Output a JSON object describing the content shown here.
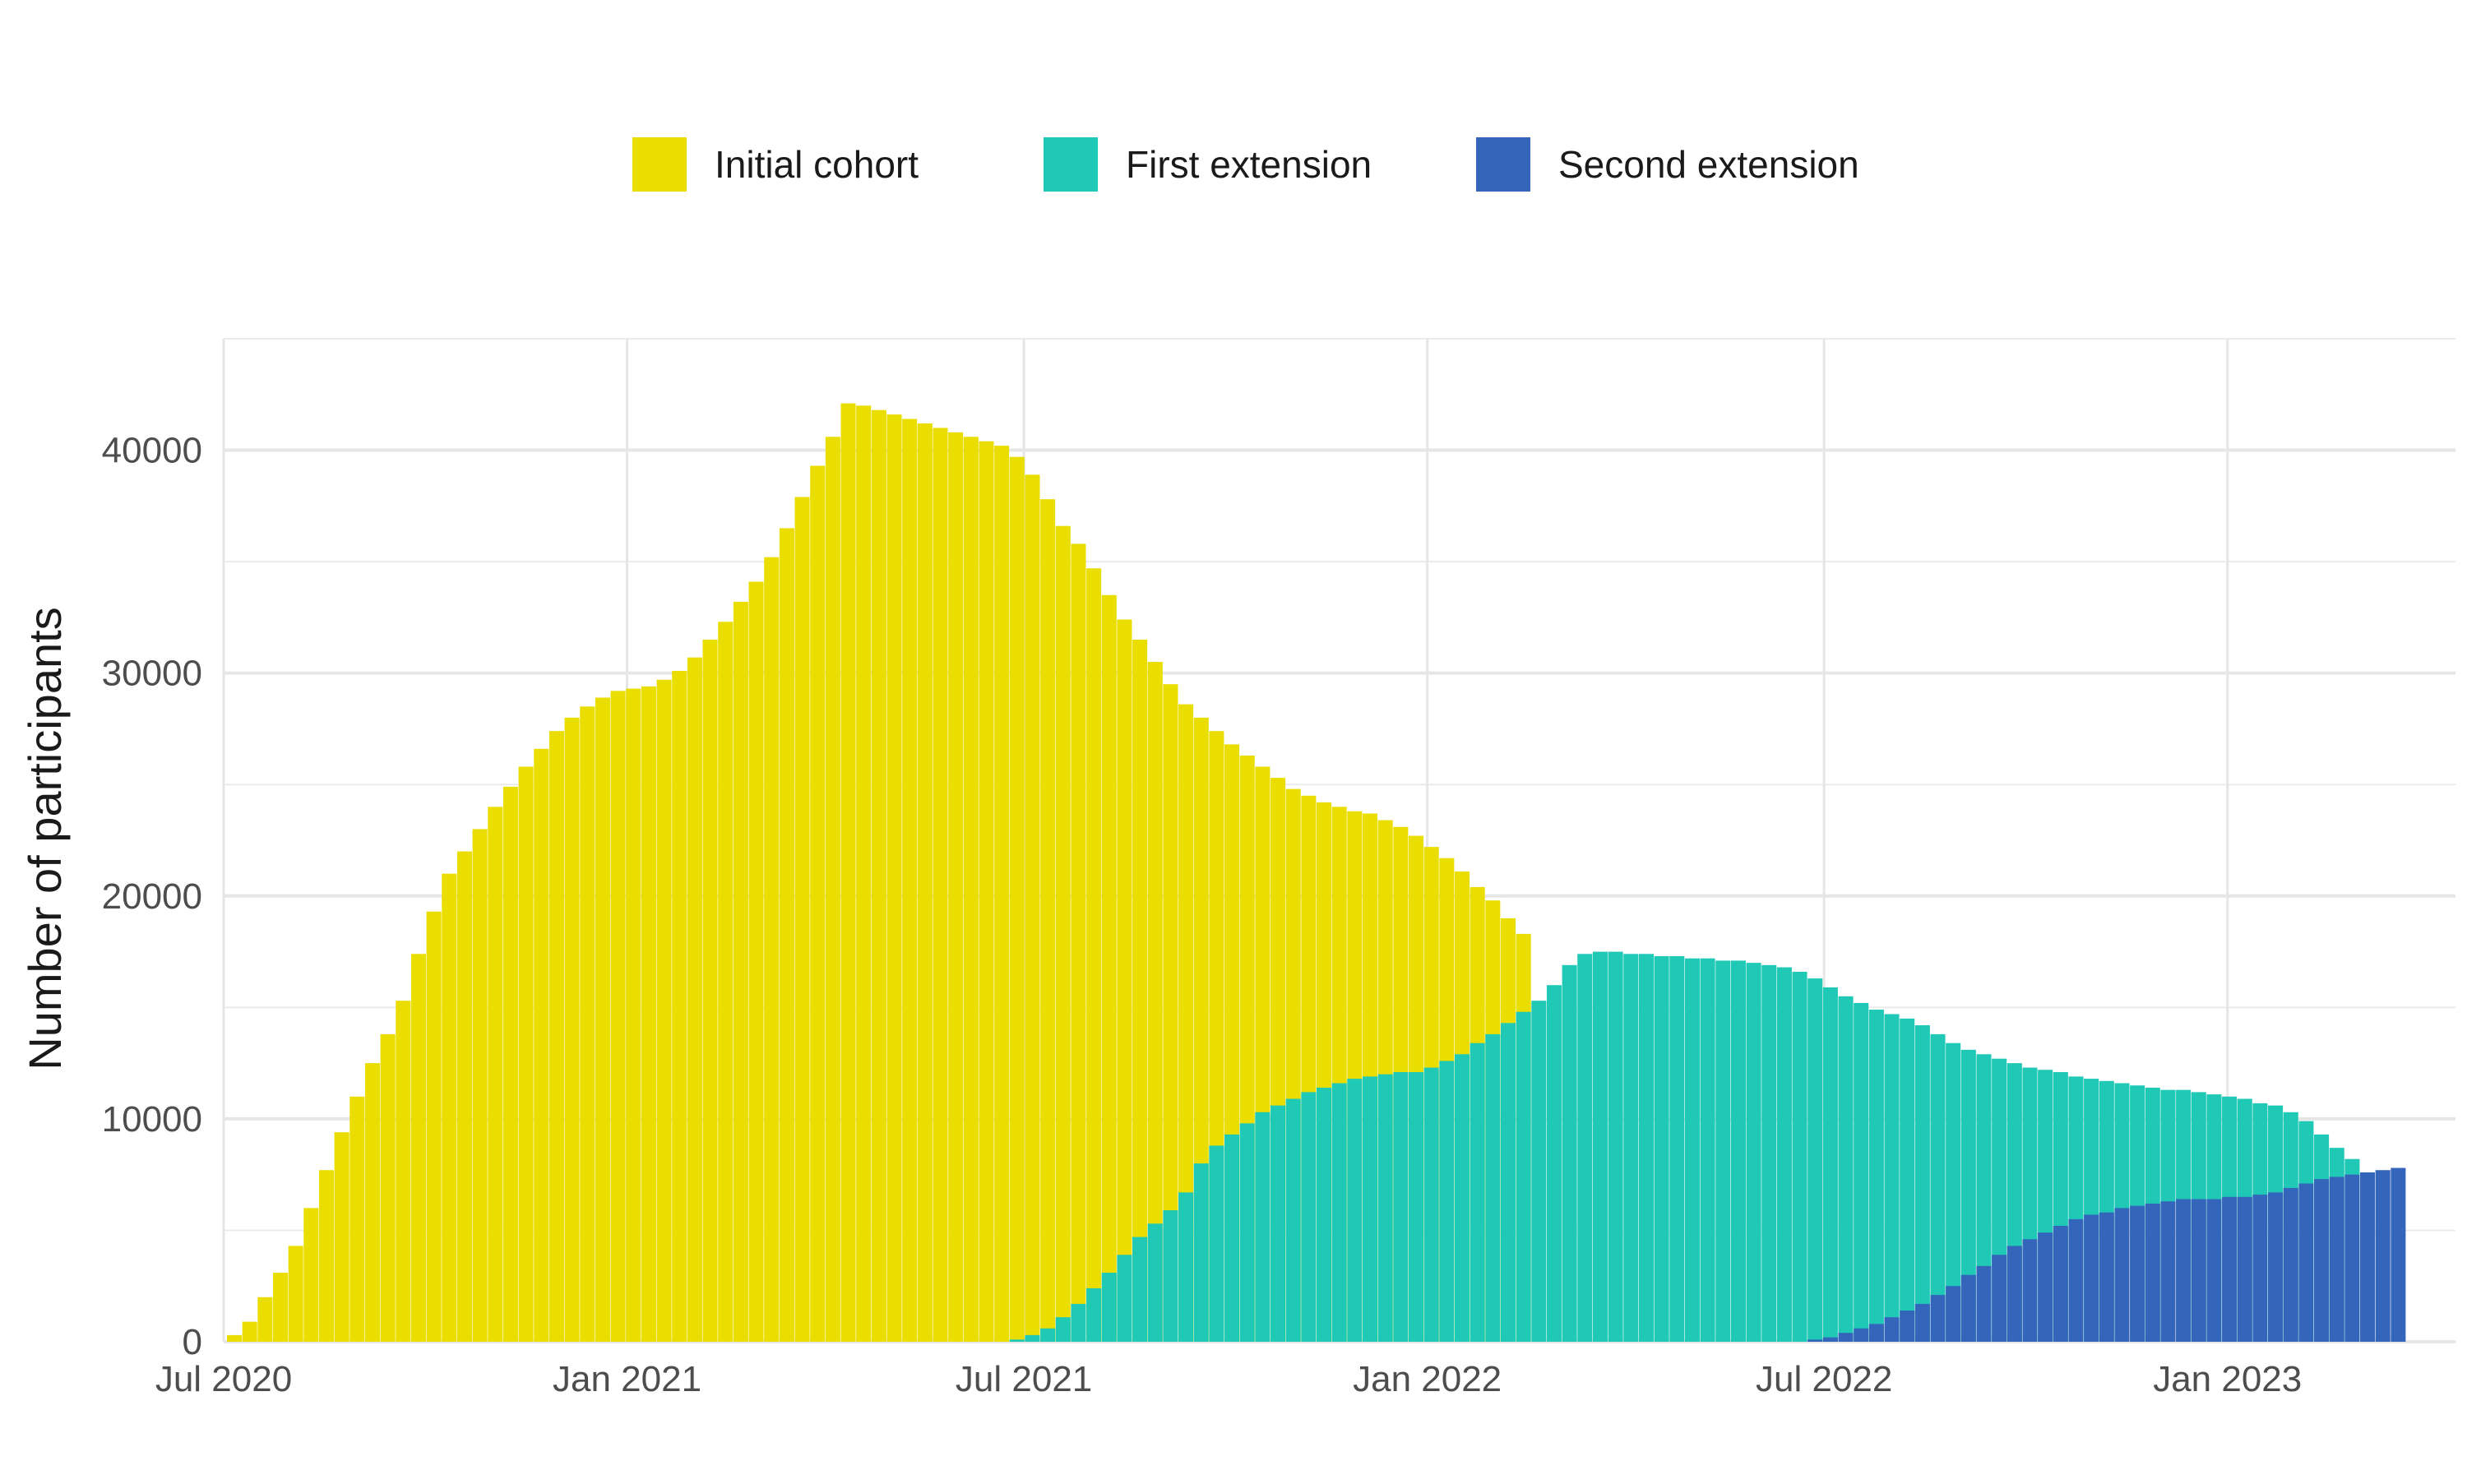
{
  "chart_data": {
    "type": "bar",
    "subtype": "weekly overlapping bars (histogram of participants over time)",
    "ylabel": "Number of participants",
    "xlabel": "",
    "title": "",
    "x_axis": {
      "type": "date",
      "range": [
        "2020-07-01",
        "2023-04-15"
      ],
      "ticks": [
        {
          "date": "2020-07-01",
          "label": "Jul 2020"
        },
        {
          "date": "2021-01-01",
          "label": "Jan 2021"
        },
        {
          "date": "2021-07-01",
          "label": "Jul 2021"
        },
        {
          "date": "2022-01-01",
          "label": "Jan 2022"
        },
        {
          "date": "2022-07-01",
          "label": "Jul 2022"
        },
        {
          "date": "2023-01-01",
          "label": "Jan 2023"
        }
      ]
    },
    "y_axis": {
      "range": [
        0,
        45000
      ],
      "ticks": [
        0,
        10000,
        20000,
        30000,
        40000
      ],
      "tick_labels": [
        "0",
        "10000",
        "20000",
        "30000",
        "40000"
      ],
      "minor_gridlines": [
        5000,
        15000,
        25000,
        35000,
        45000
      ]
    },
    "grid": true,
    "legend": {
      "position": "top",
      "direction": "horizontal"
    },
    "bin": "weekly",
    "series": [
      {
        "name": "Initial cohort",
        "color": "#eadd00",
        "x_start": "2020-07-06",
        "values": [
          300,
          900,
          2000,
          3100,
          4300,
          6000,
          7700,
          9400,
          11000,
          12500,
          13800,
          15300,
          17400,
          19300,
          21000,
          22000,
          23000,
          24000,
          24900,
          25800,
          26600,
          27400,
          28000,
          28500,
          28900,
          29200,
          29300,
          29400,
          29700,
          30100,
          30700,
          31500,
          32300,
          33200,
          34100,
          35200,
          36500,
          37900,
          39300,
          40600,
          42100,
          42000,
          41800,
          41600,
          41400,
          41200,
          41000,
          40800,
          40600,
          40400,
          40200,
          39700,
          38900,
          37800,
          36600,
          35800,
          34700,
          33500,
          32400,
          31500,
          30500,
          29500,
          28600,
          28000,
          27400,
          26800,
          26300,
          25800,
          25300,
          24800,
          24500,
          24200,
          24000,
          23800,
          23700,
          23400,
          23100,
          22700,
          22200,
          21700,
          21100,
          20400,
          19800,
          19000,
          18300
        ]
      },
      {
        "name": "First extension",
        "color": "#20c9b6",
        "x_start": "2021-06-28",
        "values": [
          100,
          300,
          600,
          1100,
          1700,
          2400,
          3100,
          3900,
          4700,
          5300,
          5900,
          6700,
          8000,
          8800,
          9300,
          9800,
          10300,
          10600,
          10900,
          11200,
          11400,
          11600,
          11800,
          11900,
          12000,
          12100,
          12100,
          12300,
          12600,
          12900,
          13400,
          13800,
          14300,
          14800,
          15300,
          16000,
          16900,
          17400,
          17500,
          17500,
          17400,
          17400,
          17300,
          17300,
          17200,
          17200,
          17100,
          17100,
          17000,
          16900,
          16800,
          16600,
          16300,
          15900,
          15500,
          15200,
          14900,
          14700,
          14500,
          14200,
          13800,
          13400,
          13100,
          12900,
          12700,
          12500,
          12300,
          12200,
          12100,
          11900,
          11800,
          11700,
          11600,
          11500,
          11400,
          11300,
          11300,
          11200,
          11100,
          11000,
          10900,
          10700,
          10600,
          10300,
          9900,
          9300,
          8700,
          8200
        ]
      },
      {
        "name": "Second extension",
        "color": "#3366bb",
        "x_start": "2022-06-27",
        "values": [
          100,
          200,
          400,
          600,
          800,
          1100,
          1400,
          1700,
          2100,
          2500,
          3000,
          3400,
          3900,
          4300,
          4600,
          4900,
          5200,
          5500,
          5700,
          5800,
          6000,
          6100,
          6200,
          6300,
          6400,
          6400,
          6400,
          6500,
          6500,
          6600,
          6700,
          6900,
          7100,
          7300,
          7400,
          7500,
          7600,
          7700,
          7800
        ]
      }
    ]
  }
}
